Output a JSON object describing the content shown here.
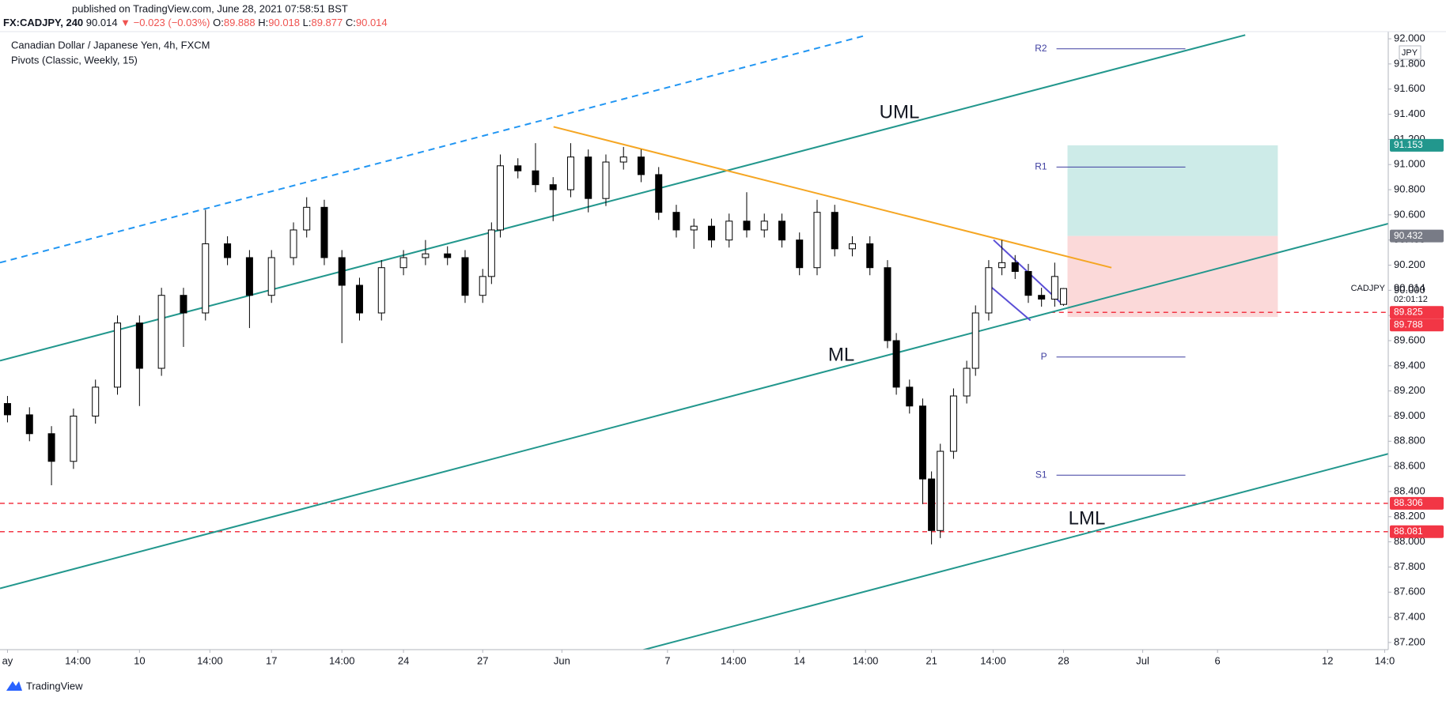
{
  "header": {
    "publisher": "published on TradingView.com, June 28, 2021 07:58:51 BST",
    "symbol": "FX:CADJPY, 240",
    "last": "90.014",
    "change": "▼ −0.023 (−0.03%)",
    "ohlc": [
      {
        "label": "O:",
        "value": "89.888"
      },
      {
        "label": "H:",
        "value": "90.018"
      },
      {
        "label": "L:",
        "value": "89.877"
      },
      {
        "label": "C:",
        "value": "90.014"
      }
    ]
  },
  "footer": "TradingView",
  "chart_data": {
    "type": "candlestick",
    "title": "Canadian Dollar / Japanese Yen, 4h, FXCM",
    "subtitle": "Pivots (Classic, Weekly, 15)",
    "currency": "JPY",
    "up_color": "#ffffff",
    "down_color": "#000000",
    "x": [
      0,
      5,
      10,
      15,
      20,
      25,
      30,
      35,
      40,
      45,
      50,
      55,
      60,
      65,
      68,
      72,
      76,
      80,
      85,
      90,
      95,
      100,
      104,
      108,
      110,
      112,
      116,
      120,
      124,
      128,
      132,
      136,
      140,
      144,
      148,
      152,
      156,
      160,
      164,
      168,
      172,
      176,
      180,
      184,
      188,
      192,
      196,
      200,
      202,
      205,
      208,
      210,
      212,
      215,
      218,
      220,
      223,
      226,
      229,
      232,
      235,
      238,
      240
    ],
    "open": [
      89.1,
      89.01,
      88.86,
      88.64,
      89.0,
      89.23,
      89.74,
      89.38,
      89.96,
      89.82,
      90.37,
      90.26,
      89.96,
      90.26,
      90.48,
      90.66,
      90.26,
      90.04,
      89.82,
      90.18,
      90.26,
      90.29,
      90.26,
      89.96,
      90.11,
      90.48,
      90.99,
      90.95,
      90.84,
      90.8,
      91.06,
      90.73,
      91.02,
      91.06,
      90.92,
      90.62,
      90.48,
      90.51,
      90.4,
      90.55,
      90.48,
      90.55,
      90.4,
      90.18,
      90.62,
      90.33,
      90.37,
      90.18,
      89.6,
      89.23,
      89.08,
      88.5,
      88.09,
      88.72,
      89.16,
      89.38,
      89.82,
      90.18,
      90.22,
      90.15,
      89.96,
      89.93,
      89.888
    ],
    "high": [
      89.16,
      89.07,
      88.92,
      89.06,
      89.29,
      89.8,
      89.8,
      90.02,
      90.02,
      90.64,
      90.43,
      90.32,
      90.32,
      90.54,
      90.74,
      90.72,
      90.32,
      90.1,
      90.24,
      90.32,
      90.4,
      90.35,
      90.32,
      90.17,
      90.54,
      91.08,
      91.05,
      91.17,
      90.9,
      91.17,
      91.12,
      91.08,
      91.14,
      91.12,
      90.98,
      90.68,
      90.57,
      90.57,
      90.61,
      90.78,
      90.61,
      90.61,
      90.46,
      90.72,
      90.68,
      90.43,
      90.43,
      90.24,
      89.66,
      89.29,
      89.14,
      88.56,
      88.78,
      89.22,
      89.44,
      89.88,
      90.24,
      90.4,
      90.28,
      90.21,
      90.02,
      90.22,
      90.018
    ],
    "low": [
      88.95,
      88.8,
      88.45,
      88.58,
      88.94,
      89.17,
      89.08,
      89.32,
      89.55,
      89.76,
      90.2,
      89.7,
      89.9,
      90.2,
      90.42,
      90.2,
      89.58,
      89.76,
      89.76,
      90.12,
      90.2,
      90.2,
      89.9,
      89.9,
      90.05,
      90.42,
      90.89,
      90.78,
      90.55,
      90.74,
      90.62,
      90.67,
      90.96,
      90.86,
      90.56,
      90.42,
      90.33,
      90.34,
      90.34,
      90.42,
      90.42,
      90.34,
      90.12,
      90.12,
      90.27,
      90.27,
      90.12,
      89.54,
      89.17,
      89.02,
      88.3,
      87.98,
      88.03,
      88.66,
      89.1,
      89.32,
      89.76,
      90.12,
      90.09,
      89.9,
      89.87,
      89.87,
      89.877
    ],
    "close": [
      89.01,
      88.86,
      88.64,
      89.0,
      89.23,
      89.74,
      89.38,
      89.96,
      89.82,
      90.37,
      90.26,
      89.96,
      90.26,
      90.48,
      90.66,
      90.26,
      90.04,
      89.82,
      90.18,
      90.26,
      90.29,
      90.26,
      89.96,
      90.11,
      90.48,
      90.99,
      90.95,
      90.84,
      90.8,
      91.06,
      90.73,
      91.02,
      91.06,
      90.92,
      90.62,
      90.48,
      90.51,
      90.4,
      90.55,
      90.48,
      90.55,
      90.4,
      90.18,
      90.62,
      90.33,
      90.37,
      90.18,
      89.6,
      89.23,
      89.08,
      88.5,
      88.09,
      88.72,
      89.16,
      89.38,
      89.82,
      90.18,
      90.22,
      90.15,
      89.96,
      89.93,
      90.11,
      90.014
    ],
    "xlim": [
      -1.7,
      313.8
    ],
    "ylim": [
      87.143,
      92.057
    ],
    "xticks": [
      {
        "value": 0,
        "label": "ay"
      },
      {
        "value": 16,
        "label": "14:00"
      },
      {
        "value": 30,
        "label": "10"
      },
      {
        "value": 46,
        "label": "14:00"
      },
      {
        "value": 60,
        "label": "17"
      },
      {
        "value": 76,
        "label": "14:00"
      },
      {
        "value": 90,
        "label": "24"
      },
      {
        "value": 108,
        "label": "27"
      },
      {
        "value": 126,
        "label": "Jun"
      },
      {
        "value": 150,
        "label": "7"
      },
      {
        "value": 165,
        "label": "14:00"
      },
      {
        "value": 180,
        "label": "14"
      },
      {
        "value": 195,
        "label": "14:00"
      },
      {
        "value": 210,
        "label": "21"
      },
      {
        "value": 224,
        "label": "14:00"
      },
      {
        "value": 240,
        "label": "28"
      },
      {
        "value": 258,
        "label": "Jul"
      },
      {
        "value": 275,
        "label": "6"
      },
      {
        "value": 300,
        "label": "12"
      },
      {
        "value": 313,
        "label": "14:0"
      }
    ],
    "yticks": [
      {
        "value": 87.2,
        "label": "87.200"
      },
      {
        "value": 87.4,
        "label": "87.400"
      },
      {
        "value": 87.6,
        "label": "87.600"
      },
      {
        "value": 87.8,
        "label": "87.800"
      },
      {
        "value": 88.0,
        "label": "88.000"
      },
      {
        "value": 88.2,
        "label": "88.200"
      },
      {
        "value": 88.4,
        "label": "88.400"
      },
      {
        "value": 88.6,
        "label": "88.600"
      },
      {
        "value": 88.8,
        "label": "88.800"
      },
      {
        "value": 89.0,
        "label": "89.000"
      },
      {
        "value": 89.2,
        "label": "89.200"
      },
      {
        "value": 89.4,
        "label": "89.400"
      },
      {
        "value": 89.6,
        "label": "89.600"
      },
      {
        "value": 89.8,
        "label": "89.800"
      },
      {
        "value": 90.0,
        "label": "90.000"
      },
      {
        "value": 90.2,
        "label": "90.200"
      },
      {
        "value": 90.4,
        "label": "90.400"
      },
      {
        "value": 90.6,
        "label": "90.600"
      },
      {
        "value": 90.8,
        "label": "90.800"
      },
      {
        "value": 91.0,
        "label": "91.000"
      },
      {
        "value": 91.2,
        "label": "91.200"
      },
      {
        "value": 91.4,
        "label": "91.400"
      },
      {
        "value": 91.6,
        "label": "91.600"
      },
      {
        "value": 91.8,
        "label": "91.800"
      },
      {
        "value": 92.0,
        "label": "92.000"
      }
    ],
    "grid": false,
    "trendlines": [
      {
        "color": "#2196f3",
        "dashed": true,
        "x": [
          -1.7,
          195.4
        ],
        "y": [
          90.22,
          92.03
        ]
      },
      {
        "color": "#22978d",
        "dashed": false,
        "x": [
          -1.7,
          281.3
        ],
        "y": [
          89.44,
          92.03
        ]
      },
      {
        "color": "#22978d",
        "dashed": false,
        "x": [
          -1.7,
          313.8
        ],
        "y": [
          87.63,
          90.53
        ]
      },
      {
        "color": "#22978d",
        "dashed": false,
        "x": [
          144.4,
          313.8
        ],
        "y": [
          87.14,
          88.7
        ]
      },
      {
        "color": "#f5a623",
        "dashed": false,
        "x": [
          124.1,
          250.9
        ],
        "y": [
          91.3,
          90.18
        ]
      },
      {
        "color": "#5b4fd6",
        "dashed": false,
        "x": [
          224.1,
          239.7
        ],
        "y": [
          90.4,
          89.89
        ]
      },
      {
        "color": "#5b4fd6",
        "dashed": false,
        "x": [
          223.1,
          232.5
        ],
        "y": [
          90.04,
          89.76
        ]
      }
    ],
    "annotations": [
      {
        "text": "UML",
        "x": 202.7,
        "y": 91.41
      },
      {
        "text": "ML",
        "x": 189.5,
        "y": 89.48
      },
      {
        "text": "LML",
        "x": 245.3,
        "y": 88.18
      }
    ],
    "pivot_color": "#3f3fa0",
    "pivots": [
      {
        "label": "R2",
        "value": 91.92,
        "x": [
          238.4,
          267.7
        ]
      },
      {
        "label": "R1",
        "value": 90.98,
        "x": [
          238.4,
          267.7
        ]
      },
      {
        "label": "P",
        "value": 89.47,
        "x": [
          238.4,
          267.7
        ]
      },
      {
        "label": "S1",
        "value": 88.53,
        "x": [
          238.4,
          267.7
        ]
      }
    ],
    "hlines": [
      {
        "value": 88.306,
        "color": "#f23645",
        "x_start": -1.7
      },
      {
        "value": 88.081,
        "color": "#f23645",
        "x_start": -1.7
      },
      {
        "value": 89.825,
        "color": "#f23645",
        "x_start": 237
      }
    ],
    "position": {
      "x": [
        240.9,
        288.7
      ],
      "entry": 90.432,
      "target": 91.153,
      "stop": 89.788,
      "target_color": "#cdebe8",
      "stop_color": "#fbd9d9"
    },
    "price_labels": [
      {
        "value": 91.153,
        "color": "#22978d"
      },
      {
        "value": 90.432,
        "color": "#787b86"
      },
      {
        "value": 89.825,
        "color": "#f23645"
      },
      {
        "value": 89.788,
        "color": "#f23645"
      },
      {
        "value": 88.306,
        "color": "#f23645"
      },
      {
        "value": 88.081,
        "color": "#f23645"
      }
    ],
    "last_price": {
      "value": 90.014,
      "symbol": "CADJPY",
      "countdown": "02:01:12"
    }
  }
}
